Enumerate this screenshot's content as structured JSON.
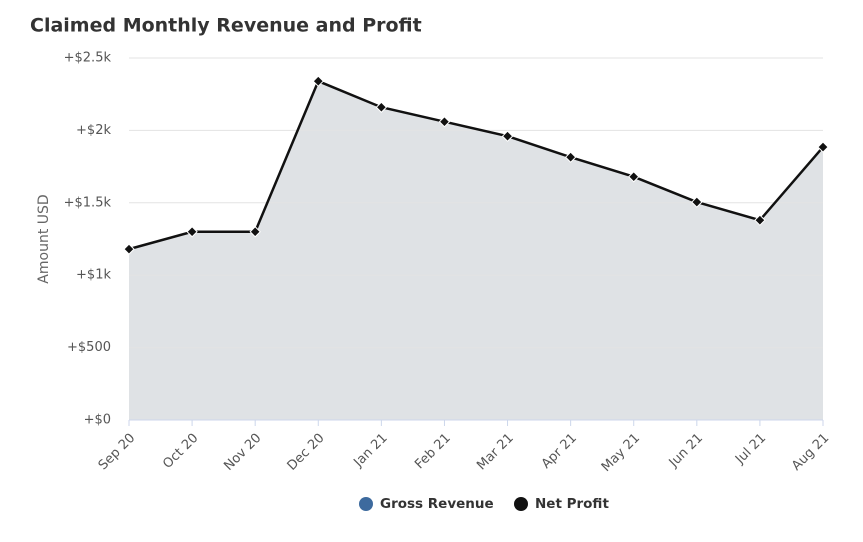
{
  "chart_data": {
    "type": "area",
    "title": "Claimed Monthly Revenue and Profit",
    "y_label": "Amount USD",
    "categories": [
      "Sep 20",
      "Oct 20",
      "Nov 20",
      "Dec 20",
      "Jan 21",
      "Feb 21",
      "Mar 21",
      "Apr 21",
      "May 21",
      "Jun 21",
      "Jul 21",
      "Aug 21"
    ],
    "series": [
      {
        "name": "Gross Revenue",
        "color": "#3d6a9e",
        "values": [
          null,
          null,
          null,
          null,
          null,
          null,
          null,
          null,
          null,
          null,
          null,
          null
        ]
      },
      {
        "name": "Net Profit",
        "color": "#111111",
        "values": [
          1180,
          1300,
          1300,
          2340,
          2160,
          2060,
          1960,
          1815,
          1680,
          1505,
          1380,
          1885
        ]
      }
    ],
    "ylim": [
      0,
      2500
    ],
    "yticks": [
      {
        "value": 0,
        "label": "+$0"
      },
      {
        "value": 500,
        "label": "+$500"
      },
      {
        "value": 1000,
        "label": "+$1k"
      },
      {
        "value": 1500,
        "label": "+$1.5k"
      },
      {
        "value": 2000,
        "label": "+$2k"
      },
      {
        "value": 2500,
        "label": "+$2.5k"
      }
    ],
    "grid": true,
    "area_color": "#dfe2e5",
    "legend": "bottom"
  }
}
